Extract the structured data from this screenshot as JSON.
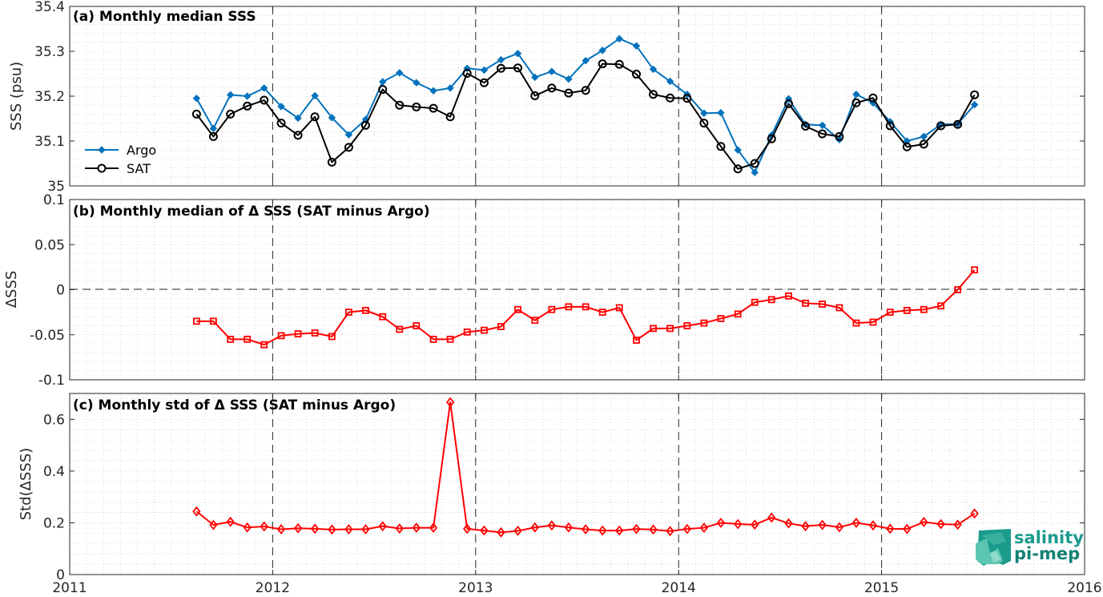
{
  "chart_data": [
    {
      "type": "line",
      "title": "(a) Monthly median SSS",
      "xlabel": "",
      "ylabel": "SSS (psu)",
      "xlim": [
        2011,
        2016
      ],
      "ylim": [
        35,
        35.4
      ],
      "yticks": [
        35,
        35.1,
        35.2,
        35.3,
        35.4
      ],
      "ytick_labels": [
        "35",
        "35.1",
        "35.2",
        "35.3",
        "35.4"
      ],
      "grid": true,
      "legend_position": "lower-left",
      "x": [
        2011.625,
        2011.708,
        2011.792,
        2011.875,
        2011.958,
        2012.042,
        2012.125,
        2012.208,
        2012.292,
        2012.375,
        2012.458,
        2012.542,
        2012.625,
        2012.708,
        2012.792,
        2012.875,
        2012.958,
        2013.042,
        2013.125,
        2013.208,
        2013.292,
        2013.375,
        2013.458,
        2013.542,
        2013.625,
        2013.708,
        2013.792,
        2013.875,
        2013.958,
        2014.042,
        2014.125,
        2014.208,
        2014.292,
        2014.375,
        2014.458,
        2014.542,
        2014.625,
        2014.708,
        2014.792,
        2014.875,
        2014.958,
        2015.042,
        2015.125,
        2015.208,
        2015.292,
        2015.375,
        2015.458
      ],
      "series": [
        {
          "name": "Argo",
          "color": "#0072bd",
          "marker": "diamond-filled",
          "values": [
            35.195,
            35.128,
            35.203,
            35.2,
            35.218,
            35.177,
            35.151,
            35.201,
            35.152,
            35.114,
            35.148,
            35.232,
            35.252,
            35.23,
            35.212,
            35.218,
            35.262,
            35.258,
            35.281,
            35.295,
            35.242,
            35.255,
            35.238,
            35.279,
            35.302,
            35.328,
            35.312,
            35.26,
            35.233,
            35.204,
            35.162,
            35.163,
            35.08,
            35.03,
            35.113,
            35.194,
            35.137,
            35.135,
            35.103,
            35.204,
            35.185,
            35.143,
            35.1,
            35.11,
            35.137,
            35.138,
            35.181
          ]
        },
        {
          "name": "SAT",
          "color": "#000000",
          "marker": "circle-open",
          "values": [
            35.16,
            35.11,
            35.16,
            35.178,
            35.191,
            35.14,
            35.113,
            35.154,
            35.053,
            35.086,
            35.135,
            35.215,
            35.18,
            35.176,
            35.173,
            35.154,
            35.251,
            35.23,
            35.262,
            35.263,
            35.201,
            35.218,
            35.207,
            35.213,
            35.272,
            35.271,
            35.249,
            35.204,
            35.196,
            35.195,
            35.14,
            35.088,
            35.038,
            35.05,
            35.105,
            35.183,
            35.133,
            35.116,
            35.11,
            35.185,
            35.196,
            35.134,
            35.087,
            35.093,
            35.134,
            35.137,
            35.203
          ]
        }
      ]
    },
    {
      "type": "line",
      "title": "(b) Monthly median of Δ SSS (SAT minus Argo)",
      "xlabel": "",
      "ylabel": "ΔSSS",
      "xlim": [
        2011,
        2016
      ],
      "ylim": [
        -0.1,
        0.1
      ],
      "yticks": [
        -0.1,
        -0.05,
        0,
        0.05,
        0.1
      ],
      "ytick_labels": [
        "-0.1",
        "-0.05",
        "0",
        "0.05",
        "0.1"
      ],
      "zero_line": true,
      "grid": true,
      "x": [
        2011.625,
        2011.708,
        2011.792,
        2011.875,
        2011.958,
        2012.042,
        2012.125,
        2012.208,
        2012.292,
        2012.375,
        2012.458,
        2012.542,
        2012.625,
        2012.708,
        2012.792,
        2012.875,
        2012.958,
        2013.042,
        2013.125,
        2013.208,
        2013.292,
        2013.375,
        2013.458,
        2013.542,
        2013.625,
        2013.708,
        2013.792,
        2013.875,
        2013.958,
        2014.042,
        2014.125,
        2014.208,
        2014.292,
        2014.375,
        2014.458,
        2014.542,
        2014.625,
        2014.708,
        2014.792,
        2014.875,
        2014.958,
        2015.042,
        2015.125,
        2015.208,
        2015.292,
        2015.375,
        2015.458
      ],
      "series": [
        {
          "name": "",
          "color": "#ff0000",
          "marker": "square-open",
          "values": [
            -0.035,
            -0.035,
            -0.055,
            -0.055,
            -0.061,
            -0.051,
            -0.049,
            -0.048,
            -0.052,
            -0.025,
            -0.023,
            -0.03,
            -0.044,
            -0.04,
            -0.055,
            -0.055,
            -0.047,
            -0.045,
            -0.041,
            -0.022,
            -0.034,
            -0.022,
            -0.019,
            -0.019,
            -0.025,
            -0.02,
            -0.056,
            -0.043,
            -0.043,
            -0.04,
            -0.037,
            -0.032,
            -0.027,
            -0.014,
            -0.011,
            -0.007,
            -0.015,
            -0.016,
            -0.02,
            -0.037,
            -0.036,
            -0.025,
            -0.023,
            -0.022,
            -0.018,
            0,
            0.022
          ]
        }
      ]
    },
    {
      "type": "line",
      "title": "(c) Monthly std of Δ SSS (SAT minus Argo)",
      "xlabel": "",
      "ylabel": "Std(ΔSSS)",
      "xlim": [
        2011,
        2016
      ],
      "ylim": [
        0,
        0.7
      ],
      "yticks": [
        0,
        0.2,
        0.4,
        0.6
      ],
      "ytick_labels": [
        "0",
        "0.2",
        "0.4",
        "0.6"
      ],
      "xticks": [
        2011,
        2012,
        2013,
        2014,
        2015,
        2016
      ],
      "xtick_labels": [
        "2011",
        "2012",
        "2013",
        "2014",
        "2015",
        "2016"
      ],
      "grid": true,
      "x": [
        2011.625,
        2011.708,
        2011.792,
        2011.875,
        2011.958,
        2012.042,
        2012.125,
        2012.208,
        2012.292,
        2012.375,
        2012.458,
        2012.542,
        2012.625,
        2012.708,
        2012.792,
        2012.875,
        2012.958,
        2013.042,
        2013.125,
        2013.208,
        2013.292,
        2013.375,
        2013.458,
        2013.542,
        2013.625,
        2013.708,
        2013.792,
        2013.875,
        2013.958,
        2014.042,
        2014.125,
        2014.208,
        2014.292,
        2014.375,
        2014.458,
        2014.542,
        2014.625,
        2014.708,
        2014.792,
        2014.875,
        2014.958,
        2015.042,
        2015.125,
        2015.208,
        2015.292,
        2015.375,
        2015.458
      ],
      "series": [
        {
          "name": "",
          "color": "#ff0000",
          "marker": "diamond-open",
          "values": [
            0.244,
            0.192,
            0.204,
            0.182,
            0.186,
            0.175,
            0.179,
            0.177,
            0.174,
            0.175,
            0.175,
            0.187,
            0.178,
            0.181,
            0.181,
            0.666,
            0.177,
            0.17,
            0.163,
            0.169,
            0.182,
            0.19,
            0.182,
            0.175,
            0.17,
            0.17,
            0.176,
            0.174,
            0.168,
            0.176,
            0.181,
            0.2,
            0.195,
            0.193,
            0.22,
            0.198,
            0.187,
            0.192,
            0.183,
            0.2,
            0.19,
            0.177,
            0.176,
            0.203,
            0.195,
            0.193,
            0.236
          ]
        }
      ]
    }
  ],
  "logo": {
    "line1": "salinity",
    "line2": "pi-mep",
    "color": "#1a9b8c"
  }
}
